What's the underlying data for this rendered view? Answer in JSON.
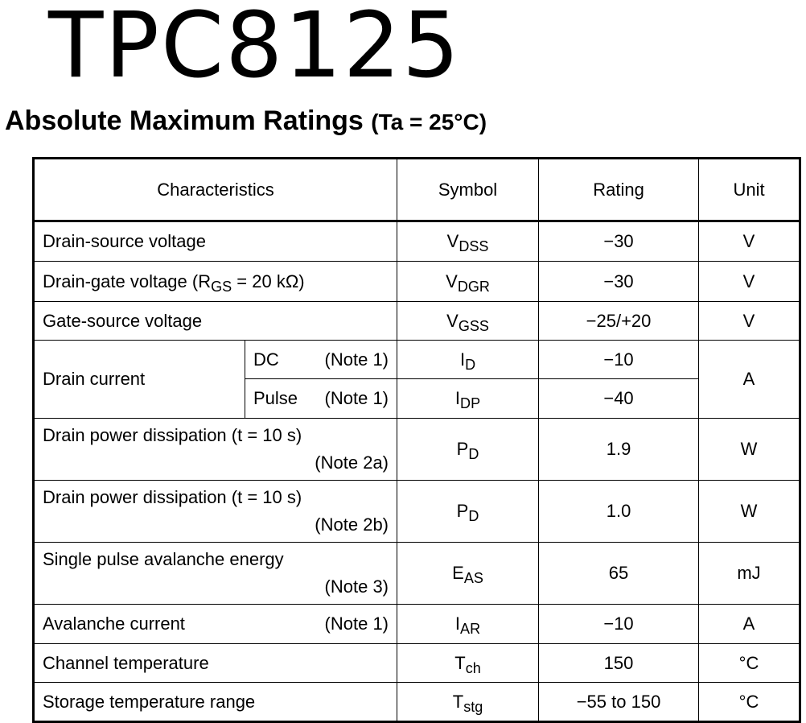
{
  "header": {
    "title": "TPC8125",
    "subtitle": "Absolute Maximum Ratings",
    "condition": "(Ta = 25°C)"
  },
  "table": {
    "columns": [
      "Characteristics",
      "Symbol",
      "Rating",
      "Unit"
    ],
    "rows": [
      {
        "characteristic": "Drain-source voltage",
        "symbol": {
          "base": "V",
          "sub": "DSS"
        },
        "rating": "−30",
        "unit": "V"
      },
      {
        "characteristic_parts": [
          "Drain-gate voltage (R",
          "GS",
          " = 20 kΩ)"
        ],
        "symbol": {
          "base": "V",
          "sub": "DGR"
        },
        "rating": "−30",
        "unit": "V"
      },
      {
        "characteristic": "Gate-source voltage",
        "symbol": {
          "base": "V",
          "sub": "GSS"
        },
        "rating": "−25/+20",
        "unit": "V"
      },
      {
        "characteristic": "Drain current",
        "conditions": [
          {
            "condition": "DC",
            "note": "(Note 1)",
            "symbol": {
              "base": "I",
              "sub": "D"
            },
            "rating": "−10"
          },
          {
            "condition": "Pulse",
            "note": "(Note 1)",
            "symbol": {
              "base": "I",
              "sub": "DP"
            },
            "rating": "−40"
          }
        ],
        "unit": "A"
      },
      {
        "characteristic": "Drain power dissipation (t = 10 s)",
        "note": "(Note 2a)",
        "symbol": {
          "base": "P",
          "sub": "D"
        },
        "rating": "1.9",
        "unit": "W"
      },
      {
        "characteristic": "Drain power dissipation (t = 10 s)",
        "note": "(Note 2b)",
        "symbol": {
          "base": "P",
          "sub": "D"
        },
        "rating": "1.0",
        "unit": "W"
      },
      {
        "characteristic": "Single pulse avalanche energy",
        "note": "(Note 3)",
        "symbol": {
          "base": "E",
          "sub": "AS"
        },
        "rating": "65",
        "unit": "mJ"
      },
      {
        "characteristic": "Avalanche current",
        "note": "(Note 1)",
        "symbol": {
          "base": "I",
          "sub": "AR"
        },
        "rating": "−10",
        "unit": "A"
      },
      {
        "characteristic": "Channel temperature",
        "symbol": {
          "base": "T",
          "sub": "ch"
        },
        "rating": "150",
        "unit": "°C"
      },
      {
        "characteristic": "Storage temperature range",
        "symbol": {
          "base": "T",
          "sub": "stg"
        },
        "rating": "−55 to 150",
        "unit": "°C"
      }
    ]
  }
}
